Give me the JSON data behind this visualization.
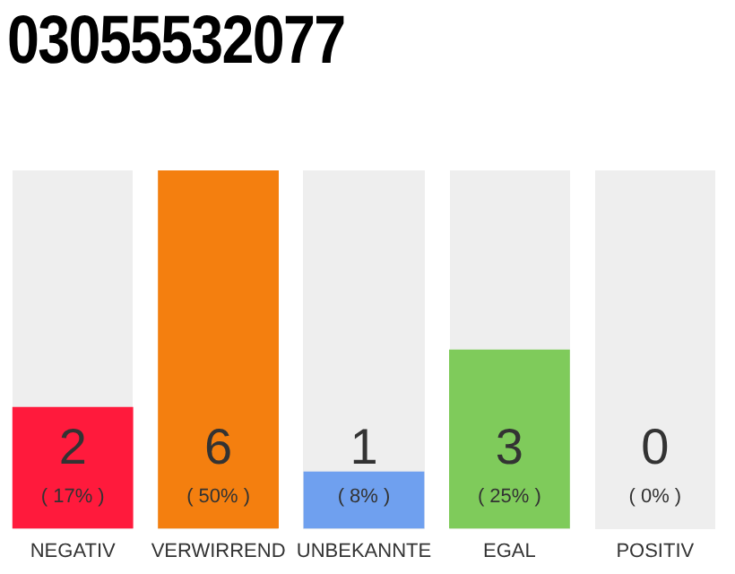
{
  "chart_data": {
    "type": "bar",
    "title": "03055532077",
    "categories": [
      "NEGATIV",
      "VERWIRREND",
      "UNBEKANNTE",
      "EGAL",
      "POSITIV"
    ],
    "values": [
      17,
      50,
      8,
      25,
      0
    ],
    "annotations": [
      "2",
      "6",
      "1",
      "3",
      "0"
    ],
    "colors": [
      "#ff1a3c",
      "#f47f0f",
      "#6fa0ef",
      "#7fcb5b",
      "#cccccc"
    ],
    "value_labels": [
      "( 17% )",
      "( 50% )",
      "( 8% )",
      "( 25% )",
      "( 0% )"
    ],
    "grid": false,
    "legend": false
  }
}
